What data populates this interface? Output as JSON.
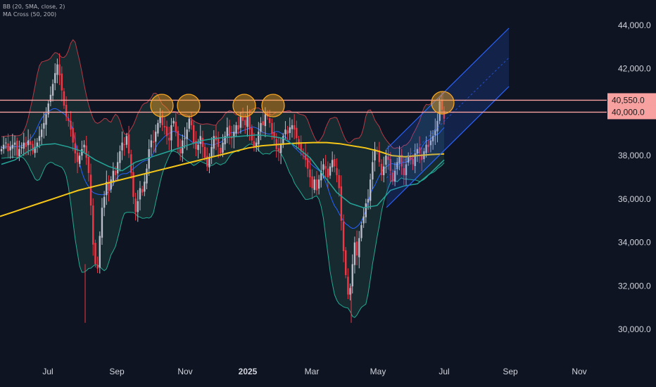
{
  "indicators": {
    "bb_label": "BB (20, SMA, close, 2)",
    "ma_label": "MA Cross (50, 200)"
  },
  "colors": {
    "background": "#0f1422",
    "up_candle": "#b9bcc8",
    "down_candle": "#f23645",
    "bb_upper": "#e0424f",
    "bb_basis": "#2962ff",
    "bb_lower": "#22ab94",
    "bb_fill": "#1e3c3c",
    "ma50": "#26a69a",
    "ma200": "#f5c518",
    "channel": "#2962ff",
    "hline": "#f7a1a1",
    "price_tag_bg": "#f7a1a1",
    "circle": "#f5a623"
  },
  "chart_data": {
    "type": "candlestick",
    "symbol": "",
    "x_tick_labels": [
      "Jul",
      "Sep",
      "Nov",
      "2025",
      "Mar",
      "May",
      "Jul",
      "Sep",
      "Nov"
    ],
    "y_tick_labels": [
      "30,000.0",
      "32,000.0",
      "34,000.0",
      "36,000.0",
      "38,000.0",
      "42,000.0",
      "44,000.0"
    ],
    "y_ticks": [
      30000,
      32000,
      34000,
      36000,
      38000,
      42000,
      44000
    ],
    "ylim": [
      29000,
      45000
    ],
    "price_levels": [
      {
        "label": "40,550.0",
        "value": 40550
      },
      {
        "label": "40,000.0",
        "value": 40000
      }
    ],
    "closes": [
      38300,
      38500,
      38600,
      38200,
      38400,
      38500,
      38600,
      38000,
      38300,
      38400,
      38600,
      38400,
      38700,
      38500,
      38200,
      38400,
      38600,
      38900,
      39200,
      39500,
      39900,
      40400,
      40800,
      41300,
      41800,
      42200,
      41700,
      41000,
      40300,
      39800,
      39600,
      39200,
      38600,
      38100,
      37700,
      38000,
      38300,
      38500,
      37900,
      37200,
      35700,
      33900,
      33000,
      32800,
      34300,
      35600,
      36100,
      36800,
      36400,
      36900,
      37300,
      37100,
      37700,
      38200,
      38600,
      38500,
      38900,
      38100,
      37200,
      36100,
      35400,
      35900,
      36500,
      36300,
      36800,
      37400,
      38300,
      38700,
      38600,
      39100,
      39500,
      39800,
      39400,
      39300,
      38900,
      38700,
      39400,
      39600,
      39100,
      38400,
      38100,
      38700,
      38800,
      39200,
      39700,
      39400,
      38600,
      38300,
      38500,
      38900,
      38400,
      37900,
      37500,
      37900,
      38400,
      38900,
      38700,
      38400,
      38100,
      38600,
      38900,
      39300,
      38900,
      38800,
      39100,
      39400,
      39200,
      39800,
      39600,
      39400,
      39800,
      39200,
      38700,
      38400,
      38600,
      39100,
      39500,
      39400,
      39900,
      39800,
      39500,
      39000,
      38800,
      38300,
      38200,
      38500,
      38900,
      39200,
      39000,
      39300,
      39400,
      39200,
      38800,
      38500,
      38200,
      38100,
      37800,
      37400,
      37000,
      36500,
      36900,
      36400,
      36900,
      37300,
      37600,
      37400,
      37000,
      37500,
      37800,
      37500,
      37100,
      36500,
      35000,
      33600,
      32500,
      31600,
      31900,
      33000,
      34000,
      33400,
      34200,
      34800,
      35200,
      35800,
      36000,
      36900,
      37700,
      38300,
      38200,
      37700,
      37100,
      37500,
      38000,
      37800,
      37300,
      36800,
      37300,
      37700,
      38000,
      37500,
      37100,
      37600,
      38000,
      37800,
      37600,
      38100,
      38300,
      38100,
      37800,
      38200,
      38500,
      38400,
      38700,
      38900,
      39200,
      39600,
      40500,
      40100,
      39700
    ],
    "series": [
      {
        "name": "MA 200",
        "values": [
          35200,
          35400,
          35600,
          35800,
          36000,
          36200,
          36400,
          36550,
          36700,
          36850,
          37000,
          37150,
          37300,
          37450,
          37600,
          37750,
          37900,
          38050,
          38200,
          38350,
          38450,
          38500,
          38550,
          38580,
          38600,
          38600,
          38550,
          38450,
          38350,
          38200,
          38000,
          37950,
          38000,
          38050,
          38080
        ]
      },
      {
        "name": "MA 50",
        "values": [
          37600,
          37800,
          38200,
          38500,
          38550,
          38400,
          38200,
          37800,
          37500,
          37300,
          37700,
          37900,
          38100,
          38300,
          38500,
          38700,
          38800,
          38850,
          38900,
          38950,
          38900,
          38800,
          38400,
          37900,
          37100,
          36300,
          35800,
          35600,
          35700,
          36400,
          36600,
          36700,
          37200,
          37800
        ]
      }
    ]
  }
}
